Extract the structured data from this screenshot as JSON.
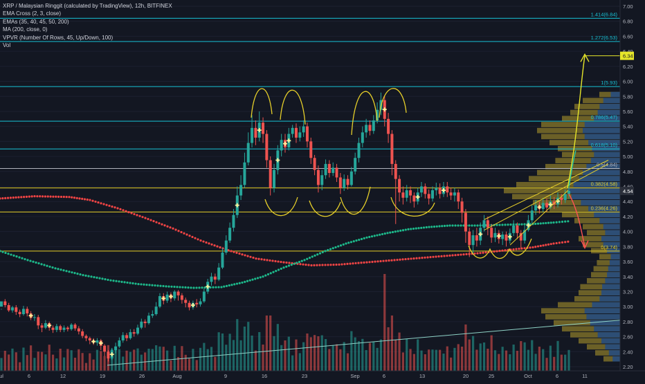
{
  "colors": {
    "background": "#131722",
    "up": "#26a69a",
    "down": "#ef5350",
    "fib": "#17c3d6",
    "fib_gray": "#b2b5be",
    "gold": "#e6cf2a",
    "ma200": "#ef4444",
    "ema": "#1db88a",
    "vpvr": "#2962ff",
    "vpvr_gold": "#8a7a2a",
    "text": "#d1d4dc",
    "cross": "#fff59d",
    "arrow_up": "#e6e62a",
    "arrow_green": "#26c6a0"
  },
  "legend": {
    "title": "XRP / Malaysian Ringgit (calculated by TradingView), 12h, BITFINEX",
    "line1": "EMA Cross (2, 3, close)",
    "line2": "EMAs (35, 40, 45, 50, 200)",
    "line3": "MA (200, close, 0)",
    "line4": "VPVR (Number Of Rows, 45, Up/Down, 100)",
    "line5": "Vol"
  },
  "chart_data": {
    "type": "candlestick",
    "title": "XRP / Malaysian Ringgit (calculated by TradingView), 12h, BITFINEX",
    "y_axis": {
      "range": [
        2.2,
        7.0
      ],
      "ticks": [
        "7.00",
        "6.80",
        "6.60",
        "6.40",
        "6.20",
        "6.00",
        "5.80",
        "5.60",
        "5.40",
        "5.20",
        "5.00",
        "4.80",
        "4.60",
        "4.40",
        "4.20",
        "4.00",
        "3.80",
        "3.60",
        "3.40",
        "3.20",
        "3.00",
        "2.80",
        "2.60",
        "2.40",
        "2.20"
      ],
      "tick_values": [
        7.0,
        6.8,
        6.6,
        6.4,
        6.2,
        6.0,
        5.8,
        5.6,
        5.4,
        5.2,
        5.0,
        4.8,
        4.6,
        4.4,
        4.2,
        4.0,
        3.8,
        3.6,
        3.4,
        3.2,
        3.0,
        2.8,
        2.6,
        2.4,
        2.2
      ],
      "current_price": "4.54",
      "target_price": "6.34"
    },
    "x_axis": {
      "ticks": [
        {
          "label": "ul",
          "x": 2
        },
        {
          "label": "6",
          "x": 42
        },
        {
          "label": "12",
          "x": 91
        },
        {
          "label": "19",
          "x": 148
        },
        {
          "label": "26",
          "x": 205
        },
        {
          "label": "Aug",
          "x": 256
        },
        {
          "label": "9",
          "x": 326
        },
        {
          "label": "16",
          "x": 382
        },
        {
          "label": "23",
          "x": 440
        },
        {
          "label": "Sep",
          "x": 513
        },
        {
          "label": "6",
          "x": 555
        },
        {
          "label": "13",
          "x": 610
        },
        {
          "label": "20",
          "x": 673
        },
        {
          "label": "25",
          "x": 710
        },
        {
          "label": "Oct",
          "x": 763
        },
        {
          "label": "6",
          "x": 805
        },
        {
          "label": "11",
          "x": 845
        }
      ]
    },
    "fib_levels": [
      {
        "label": "1.414(6.84)",
        "value": 6.84,
        "color": "fib"
      },
      {
        "label": "1.272(6.53)",
        "value": 6.53,
        "color": "fib"
      },
      {
        "label": "1(5.93)",
        "value": 5.93,
        "color": "fib"
      },
      {
        "label": "0.786(5.47)",
        "value": 5.47,
        "color": "fib"
      },
      {
        "label": "0.618(5.10)",
        "value": 5.1,
        "color": "fib"
      },
      {
        "label": "0.5(4.84)",
        "value": 4.84,
        "color": "fib_gray"
      },
      {
        "label": "0.382(4.58)",
        "value": 4.58,
        "color": "gold"
      },
      {
        "label": "0.236(4.26)",
        "value": 4.26,
        "color": "gold"
      },
      {
        "label": "0(3.74)",
        "value": 3.74,
        "color": "gold"
      }
    ],
    "ma200": [
      [
        0,
        4.44
      ],
      [
        50,
        4.47
      ],
      [
        100,
        4.46
      ],
      [
        130,
        4.42
      ],
      [
        170,
        4.31
      ],
      [
        210,
        4.18
      ],
      [
        250,
        4.04
      ],
      [
        290,
        3.88
      ],
      [
        330,
        3.75
      ],
      [
        370,
        3.64
      ],
      [
        410,
        3.59
      ],
      [
        450,
        3.55
      ],
      [
        490,
        3.56
      ],
      [
        530,
        3.59
      ],
      [
        570,
        3.62
      ],
      [
        610,
        3.65
      ],
      [
        650,
        3.68
      ],
      [
        690,
        3.71
      ],
      [
        730,
        3.75
      ],
      [
        770,
        3.79
      ],
      [
        800,
        3.84
      ],
      [
        825,
        3.87
      ]
    ],
    "ema": [
      [
        0,
        3.74
      ],
      [
        40,
        3.62
      ],
      [
        80,
        3.51
      ],
      [
        120,
        3.42
      ],
      [
        160,
        3.35
      ],
      [
        200,
        3.3
      ],
      [
        240,
        3.27
      ],
      [
        280,
        3.25
      ],
      [
        320,
        3.26
      ],
      [
        350,
        3.32
      ],
      [
        380,
        3.4
      ],
      [
        410,
        3.52
      ],
      [
        440,
        3.62
      ],
      [
        470,
        3.74
      ],
      [
        500,
        3.84
      ],
      [
        530,
        3.92
      ],
      [
        560,
        3.98
      ],
      [
        590,
        4.03
      ],
      [
        620,
        4.06
      ],
      [
        650,
        4.08
      ],
      [
        690,
        4.08
      ],
      [
        730,
        4.09
      ],
      [
        770,
        4.1
      ],
      [
        800,
        4.12
      ],
      [
        825,
        4.14
      ]
    ],
    "candles": [
      [
        3.0,
        3.07,
        2.97,
        2.96
      ],
      [
        3.07,
        3.02,
        3.1,
        2.99
      ],
      [
        3.02,
        2.95,
        3.05,
        2.93
      ],
      [
        2.95,
        2.99,
        3.01,
        2.92
      ],
      [
        2.99,
        2.93,
        3.02,
        2.89
      ],
      [
        2.93,
        2.9,
        2.96,
        2.86
      ],
      [
        2.9,
        2.97,
        3.01,
        2.88
      ],
      [
        2.97,
        2.91,
        3.0,
        2.87
      ],
      [
        2.91,
        2.85,
        2.94,
        2.82
      ],
      [
        2.85,
        2.86,
        2.9,
        2.81
      ],
      [
        2.86,
        2.75,
        2.89,
        2.7
      ],
      [
        2.75,
        2.72,
        2.78,
        2.66
      ],
      [
        2.72,
        2.78,
        2.82,
        2.7
      ],
      [
        2.78,
        2.72,
        2.8,
        2.68
      ],
      [
        2.72,
        2.69,
        2.75,
        2.65
      ],
      [
        2.69,
        2.74,
        2.77,
        2.66
      ],
      [
        2.74,
        2.69,
        2.76,
        2.66
      ],
      [
        2.69,
        2.72,
        2.75,
        2.66
      ],
      [
        2.72,
        2.7,
        2.74,
        2.67
      ],
      [
        2.7,
        2.76,
        2.78,
        2.68
      ],
      [
        2.76,
        2.71,
        2.78,
        2.68
      ],
      [
        2.71,
        2.67,
        2.74,
        2.63
      ],
      [
        2.67,
        2.61,
        2.7,
        2.58
      ],
      [
        2.61,
        2.58,
        2.63,
        2.54
      ],
      [
        2.58,
        2.55,
        2.6,
        2.5
      ],
      [
        2.55,
        2.52,
        2.58,
        2.49
      ],
      [
        2.52,
        2.55,
        2.58,
        2.48
      ],
      [
        2.55,
        2.48,
        2.57,
        2.42
      ],
      [
        2.48,
        2.4,
        2.5,
        2.34
      ],
      [
        2.4,
        2.31,
        2.42,
        2.27
      ],
      [
        2.31,
        2.42,
        2.45,
        2.29
      ],
      [
        2.42,
        2.47,
        2.52,
        2.38
      ],
      [
        2.47,
        2.55,
        2.59,
        2.45
      ],
      [
        2.55,
        2.62,
        2.66,
        2.52
      ],
      [
        2.62,
        2.58,
        2.65,
        2.54
      ],
      [
        2.58,
        2.66,
        2.7,
        2.56
      ],
      [
        2.66,
        2.64,
        2.7,
        2.6
      ],
      [
        2.64,
        2.72,
        2.76,
        2.62
      ],
      [
        2.72,
        2.8,
        2.84,
        2.7
      ],
      [
        2.8,
        2.78,
        2.83,
        2.72
      ],
      [
        2.78,
        2.88,
        2.92,
        2.76
      ],
      [
        2.88,
        2.9,
        2.95,
        2.85
      ],
      [
        2.9,
        3.0,
        3.06,
        2.88
      ],
      [
        3.0,
        3.14,
        3.18,
        2.98
      ],
      [
        3.14,
        3.08,
        3.18,
        3.03
      ],
      [
        3.08,
        3.16,
        3.2,
        3.05
      ],
      [
        3.16,
        3.11,
        3.19,
        3.06
      ],
      [
        3.11,
        3.2,
        3.22,
        3.08
      ],
      [
        3.2,
        3.15,
        3.22,
        3.08
      ],
      [
        3.15,
        3.09,
        3.18,
        3.04
      ],
      [
        3.09,
        3.05,
        3.12,
        2.99
      ],
      [
        3.05,
        2.99,
        3.08,
        2.95
      ],
      [
        2.99,
        3.05,
        3.08,
        2.96
      ],
      [
        3.05,
        3.03,
        3.1,
        2.99
      ],
      [
        3.03,
        3.07,
        3.11,
        3.0
      ],
      [
        3.07,
        3.2,
        3.24,
        3.05
      ],
      [
        3.2,
        3.33,
        3.37,
        3.17
      ],
      [
        3.33,
        3.4,
        3.45,
        3.28
      ],
      [
        3.4,
        3.36,
        3.44,
        3.3
      ],
      [
        3.36,
        3.52,
        3.58,
        3.34
      ],
      [
        3.52,
        3.72,
        3.78,
        3.5
      ],
      [
        3.72,
        3.88,
        3.95,
        3.69
      ],
      [
        3.88,
        4.05,
        4.12,
        3.85
      ],
      [
        4.05,
        4.22,
        4.3,
        4.0
      ],
      [
        4.22,
        4.48,
        4.6,
        4.18
      ],
      [
        4.48,
        4.62,
        4.75,
        4.42
      ],
      [
        4.62,
        4.92,
        5.05,
        4.58
      ],
      [
        4.92,
        5.18,
        5.32,
        4.88
      ],
      [
        5.18,
        5.38,
        5.55,
        5.12
      ],
      [
        5.38,
        5.25,
        5.48,
        5.15
      ],
      [
        5.25,
        5.45,
        5.6,
        5.2
      ],
      [
        5.45,
        5.3,
        5.52,
        5.18
      ],
      [
        5.3,
        4.95,
        5.35,
        4.85
      ],
      [
        4.95,
        4.58,
        5.0,
        4.48
      ],
      [
        4.58,
        4.82,
        4.9,
        4.52
      ],
      [
        4.82,
        5.08,
        5.15,
        4.76
      ],
      [
        5.08,
        5.22,
        5.3,
        5.0
      ],
      [
        5.22,
        5.12,
        5.3,
        5.05
      ],
      [
        5.12,
        5.3,
        5.38,
        5.08
      ],
      [
        5.3,
        5.38,
        5.42,
        5.25
      ],
      [
        5.38,
        5.25,
        5.44,
        5.18
      ],
      [
        5.25,
        5.32,
        5.4,
        5.2
      ],
      [
        5.32,
        5.4,
        5.48,
        5.26
      ],
      [
        5.4,
        5.2,
        5.45,
        5.12
      ],
      [
        5.2,
        4.98,
        5.25,
        4.9
      ],
      [
        4.98,
        4.82,
        5.02,
        4.75
      ],
      [
        4.82,
        4.62,
        4.88,
        4.52
      ],
      [
        4.62,
        4.75,
        4.82,
        4.55
      ],
      [
        4.75,
        4.9,
        4.96,
        4.7
      ],
      [
        4.9,
        4.78,
        4.95,
        4.72
      ],
      [
        4.78,
        4.85,
        4.92,
        4.74
      ],
      [
        4.85,
        4.72,
        4.9,
        4.66
      ],
      [
        4.72,
        4.58,
        4.78,
        4.5
      ],
      [
        4.58,
        4.7,
        4.76,
        4.54
      ],
      [
        4.7,
        4.62,
        4.75,
        4.56
      ],
      [
        4.62,
        4.8,
        4.86,
        4.6
      ],
      [
        4.8,
        4.98,
        5.05,
        4.76
      ],
      [
        4.98,
        5.18,
        5.25,
        4.92
      ],
      [
        5.18,
        5.32,
        5.4,
        5.12
      ],
      [
        5.32,
        5.42,
        5.5,
        5.25
      ],
      [
        5.42,
        5.34,
        5.48,
        5.28
      ],
      [
        5.34,
        5.48,
        5.55,
        5.3
      ],
      [
        5.48,
        5.62,
        5.72,
        5.44
      ],
      [
        5.62,
        5.75,
        5.85,
        5.55
      ],
      [
        5.75,
        5.5,
        5.8,
        5.4
      ],
      [
        5.5,
        5.3,
        5.58,
        5.18
      ],
      [
        5.3,
        4.9,
        5.35,
        4.75
      ],
      [
        4.9,
        4.7,
        4.95,
        4.1
      ],
      [
        4.7,
        4.52,
        4.75,
        4.4
      ],
      [
        4.52,
        4.45,
        4.6,
        4.36
      ],
      [
        4.45,
        4.55,
        4.62,
        4.4
      ],
      [
        4.55,
        4.48,
        4.6,
        4.38
      ],
      [
        4.48,
        4.4,
        4.52,
        4.32
      ],
      [
        4.4,
        4.52,
        4.58,
        4.36
      ],
      [
        4.52,
        4.6,
        4.66,
        4.46
      ],
      [
        4.6,
        4.5,
        4.64,
        4.44
      ],
      [
        4.5,
        4.44,
        4.56,
        4.36
      ],
      [
        4.44,
        4.55,
        4.6,
        4.4
      ],
      [
        4.55,
        4.58,
        4.65,
        4.48
      ],
      [
        4.58,
        4.5,
        4.64,
        4.44
      ],
      [
        4.5,
        4.6,
        4.66,
        4.46
      ],
      [
        4.6,
        4.52,
        4.66,
        4.46
      ],
      [
        4.52,
        4.48,
        4.58,
        4.42
      ],
      [
        4.48,
        4.52,
        4.58,
        4.4
      ],
      [
        4.52,
        4.4,
        4.56,
        4.3
      ],
      [
        4.4,
        4.25,
        4.45,
        4.12
      ],
      [
        4.25,
        4.0,
        4.3,
        3.85
      ],
      [
        4.0,
        3.82,
        4.05,
        3.66
      ],
      [
        3.82,
        3.95,
        4.02,
        3.7
      ],
      [
        3.95,
        3.88,
        4.05,
        3.8
      ],
      [
        3.88,
        4.05,
        4.12,
        3.82
      ],
      [
        4.05,
        4.15,
        4.22,
        4.0
      ],
      [
        4.15,
        4.05,
        4.2,
        3.95
      ],
      [
        4.05,
        3.92,
        4.1,
        3.85
      ],
      [
        3.92,
        3.98,
        4.05,
        3.86
      ],
      [
        3.98,
        3.9,
        4.02,
        3.84
      ],
      [
        3.9,
        3.96,
        4.0,
        3.82
      ],
      [
        3.96,
        3.88,
        4.0,
        3.8
      ],
      [
        3.88,
        3.98,
        4.04,
        3.84
      ],
      [
        3.98,
        4.08,
        4.15,
        3.94
      ],
      [
        4.08,
        3.98,
        4.12,
        3.9
      ],
      [
        3.98,
        3.88,
        4.02,
        3.76
      ],
      [
        3.88,
        4.02,
        4.08,
        3.84
      ],
      [
        4.02,
        4.15,
        4.22,
        4.0
      ],
      [
        4.15,
        4.28,
        4.35,
        4.1
      ],
      [
        4.28,
        4.35,
        4.42,
        4.22
      ],
      [
        4.35,
        4.3,
        4.4,
        4.24
      ],
      [
        4.3,
        4.38,
        4.45,
        4.26
      ],
      [
        4.38,
        4.32,
        4.44,
        4.26
      ],
      [
        4.32,
        4.4,
        4.48,
        4.3
      ],
      [
        4.4,
        4.36,
        4.46,
        4.3
      ],
      [
        4.36,
        4.45,
        4.52,
        4.32
      ],
      [
        4.45,
        4.42,
        4.5,
        4.36
      ],
      [
        4.42,
        4.5,
        4.56,
        4.38
      ],
      [
        4.5,
        4.54,
        4.6,
        4.44
      ]
    ]
  }
}
